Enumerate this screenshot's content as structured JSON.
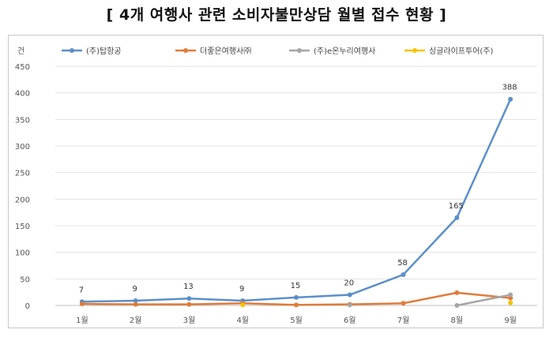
{
  "chart_data": {
    "type": "line",
    "title": "[ 4개 여행사 관련 소비자불만상담 월별 접수 현황 ]",
    "ylabel": "건",
    "ylim": [
      0,
      450
    ],
    "yticks": [
      0,
      50,
      100,
      150,
      200,
      250,
      300,
      350,
      400,
      450
    ],
    "categories": [
      "1월",
      "2월",
      "3월",
      "4월",
      "5월",
      "6월",
      "7월",
      "8월",
      "9월"
    ],
    "grid": true,
    "legend": "top",
    "series": [
      {
        "name": "(주)탑항공",
        "color": "#5b8fc9",
        "values": [
          7,
          9,
          13,
          9,
          15,
          20,
          58,
          165,
          388
        ],
        "labels": [
          "7",
          "9",
          "13",
          "9",
          "15",
          "20",
          "58",
          "165",
          "388"
        ]
      },
      {
        "name": "더좋은여행사㈜",
        "color": "#e07b39",
        "values": [
          3,
          2,
          2,
          4,
          1,
          2,
          4,
          24,
          14
        ],
        "labels": []
      },
      {
        "name": "(주)e온누리여행사",
        "color": "#a5a5a5",
        "values": [
          null,
          null,
          null,
          null,
          null,
          1,
          null,
          0,
          20
        ],
        "labels": []
      },
      {
        "name": "싱글라이프투어(주)",
        "color": "#f5c400",
        "values": [
          null,
          null,
          null,
          1,
          null,
          null,
          null,
          null,
          5
        ],
        "labels": []
      }
    ]
  }
}
